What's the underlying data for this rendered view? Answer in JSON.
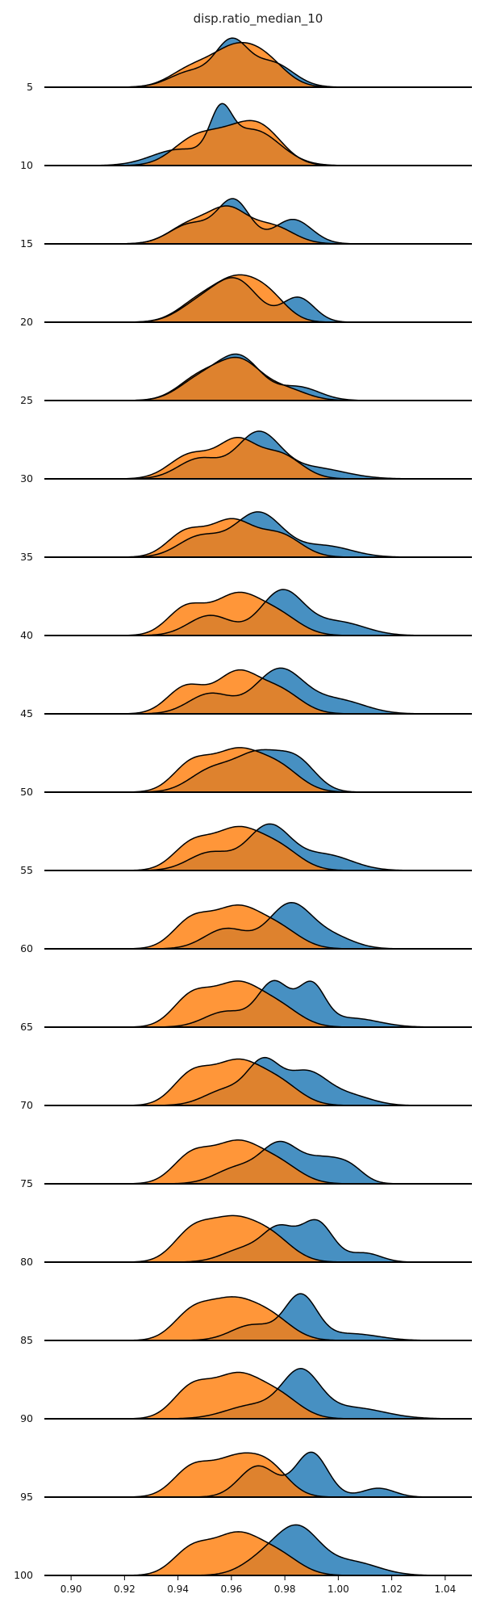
{
  "chart_data": {
    "type": "area",
    "title": "disp.ratio_median_10",
    "xlabel": "",
    "ylabel": "",
    "xlim": [
      0.89,
      1.05
    ],
    "x_ticks": [
      "0.90",
      "0.92",
      "0.94",
      "0.96",
      "0.98",
      "1.00",
      "1.02",
      "1.04"
    ],
    "x_tick_values": [
      0.9,
      0.92,
      0.94,
      0.96,
      0.98,
      1.0,
      1.02,
      1.04
    ],
    "grid": false,
    "series_colors": {
      "blue": "#1f77b4",
      "orange": "#ff7f0e"
    },
    "ridges": [
      {
        "label": "5",
        "blue": {
          "peaks": [
            [
              0.945,
              0.008,
              0.35
            ],
            [
              0.96,
              0.006,
              0.95
            ],
            [
              0.975,
              0.008,
              0.55
            ]
          ]
        },
        "orange": {
          "peaks": [
            [
              0.945,
              0.008,
              0.4
            ],
            [
              0.96,
              0.008,
              0.7
            ],
            [
              0.972,
              0.008,
              0.6
            ]
          ]
        }
      },
      {
        "label": "10",
        "blue": {
          "peaks": [
            [
              0.94,
              0.01,
              0.35
            ],
            [
              0.956,
              0.004,
              0.9
            ],
            [
              0.968,
              0.01,
              0.8
            ]
          ]
        },
        "orange": {
          "peaks": [
            [
              0.945,
              0.008,
              0.45
            ],
            [
              0.96,
              0.01,
              0.65
            ],
            [
              0.972,
              0.008,
              0.6
            ]
          ]
        }
      },
      {
        "label": "15",
        "blue": {
          "peaks": [
            [
              0.945,
              0.008,
              0.45
            ],
            [
              0.961,
              0.006,
              0.95
            ],
            [
              0.983,
              0.007,
              0.55
            ]
          ]
        },
        "orange": {
          "peaks": [
            [
              0.945,
              0.008,
              0.45
            ],
            [
              0.959,
              0.007,
              0.7
            ],
            [
              0.975,
              0.008,
              0.4
            ]
          ]
        }
      },
      {
        "label": "20",
        "blue": {
          "peaks": [
            [
              0.948,
              0.008,
              0.4
            ],
            [
              0.962,
              0.008,
              0.9
            ],
            [
              0.985,
              0.006,
              0.55
            ]
          ]
        },
        "orange": {
          "peaks": [
            [
              0.948,
              0.008,
              0.45
            ],
            [
              0.962,
              0.008,
              0.85
            ],
            [
              0.974,
              0.007,
              0.5
            ]
          ]
        }
      },
      {
        "label": "25",
        "blue": {
          "peaks": [
            [
              0.948,
              0.008,
              0.45
            ],
            [
              0.963,
              0.008,
              0.95
            ],
            [
              0.985,
              0.008,
              0.3
            ]
          ]
        },
        "orange": {
          "peaks": [
            [
              0.948,
              0.008,
              0.5
            ],
            [
              0.963,
              0.008,
              0.85
            ],
            [
              0.98,
              0.008,
              0.25
            ]
          ]
        }
      },
      {
        "label": "30",
        "blue": {
          "peaks": [
            [
              0.948,
              0.008,
              0.45
            ],
            [
              0.97,
              0.008,
              1.0
            ],
            [
              0.99,
              0.012,
              0.25
            ]
          ]
        },
        "orange": {
          "peaks": [
            [
              0.945,
              0.008,
              0.55
            ],
            [
              0.962,
              0.007,
              0.8
            ],
            [
              0.978,
              0.008,
              0.55
            ]
          ]
        }
      },
      {
        "label": "35",
        "blue": {
          "peaks": [
            [
              0.948,
              0.008,
              0.45
            ],
            [
              0.97,
              0.009,
              1.0
            ],
            [
              0.995,
              0.01,
              0.25
            ]
          ]
        },
        "orange": {
          "peaks": [
            [
              0.943,
              0.007,
              0.55
            ],
            [
              0.96,
              0.008,
              0.8
            ],
            [
              0.978,
              0.008,
              0.5
            ]
          ]
        }
      },
      {
        "label": "40",
        "blue": {
          "peaks": [
            [
              0.952,
              0.008,
              0.45
            ],
            [
              0.979,
              0.008,
              1.0
            ],
            [
              1.0,
              0.01,
              0.3
            ]
          ]
        },
        "orange": {
          "peaks": [
            [
              0.943,
              0.007,
              0.6
            ],
            [
              0.962,
              0.009,
              0.9
            ],
            [
              0.978,
              0.008,
              0.4
            ]
          ]
        }
      },
      {
        "label": "45",
        "blue": {
          "peaks": [
            [
              0.952,
              0.008,
              0.45
            ],
            [
              0.978,
              0.009,
              1.0
            ],
            [
              1.0,
              0.01,
              0.3
            ]
          ]
        },
        "orange": {
          "peaks": [
            [
              0.943,
              0.007,
              0.6
            ],
            [
              0.962,
              0.008,
              0.9
            ],
            [
              0.978,
              0.008,
              0.5
            ]
          ]
        }
      },
      {
        "label": "50",
        "blue": {
          "peaks": [
            [
              0.952,
              0.008,
              0.45
            ],
            [
              0.97,
              0.009,
              0.85
            ],
            [
              0.985,
              0.007,
              0.6
            ]
          ]
        },
        "orange": {
          "peaks": [
            [
              0.945,
              0.007,
              0.6
            ],
            [
              0.962,
              0.009,
              0.9
            ],
            [
              0.978,
              0.008,
              0.5
            ]
          ]
        }
      },
      {
        "label": "55",
        "blue": {
          "peaks": [
            [
              0.952,
              0.008,
              0.4
            ],
            [
              0.974,
              0.008,
              1.0
            ],
            [
              0.995,
              0.01,
              0.35
            ]
          ]
        },
        "orange": {
          "peaks": [
            [
              0.945,
              0.007,
              0.55
            ],
            [
              0.962,
              0.009,
              0.9
            ],
            [
              0.978,
              0.008,
              0.45
            ]
          ]
        }
      },
      {
        "label": "60",
        "blue": {
          "peaks": [
            [
              0.958,
              0.008,
              0.45
            ],
            [
              0.982,
              0.008,
              1.0
            ],
            [
              0.998,
              0.008,
              0.25
            ]
          ]
        },
        "orange": {
          "peaks": [
            [
              0.945,
              0.007,
              0.6
            ],
            [
              0.962,
              0.009,
              0.9
            ],
            [
              0.978,
              0.008,
              0.4
            ]
          ]
        }
      },
      {
        "label": "65",
        "blue": {
          "peaks": [
            [
              0.958,
              0.008,
              0.35
            ],
            [
              0.976,
              0.006,
              1.0
            ],
            [
              0.99,
              0.005,
              0.9
            ],
            [
              1.005,
              0.01,
              0.2
            ]
          ]
        },
        "orange": {
          "peaks": [
            [
              0.945,
              0.007,
              0.65
            ],
            [
              0.962,
              0.009,
              0.95
            ],
            [
              0.978,
              0.008,
              0.4
            ]
          ]
        }
      },
      {
        "label": "70",
        "blue": {
          "peaks": [
            [
              0.958,
              0.008,
              0.35
            ],
            [
              0.972,
              0.006,
              0.9
            ],
            [
              0.988,
              0.008,
              0.75
            ],
            [
              1.005,
              0.008,
              0.2
            ]
          ]
        },
        "orange": {
          "peaks": [
            [
              0.945,
              0.007,
              0.65
            ],
            [
              0.962,
              0.009,
              0.95
            ],
            [
              0.978,
              0.008,
              0.45
            ]
          ]
        }
      },
      {
        "label": "75",
        "blue": {
          "peaks": [
            [
              0.962,
              0.008,
              0.35
            ],
            [
              0.978,
              0.007,
              0.85
            ],
            [
              0.995,
              0.008,
              0.55
            ],
            [
              1.005,
              0.005,
              0.2
            ]
          ]
        },
        "orange": {
          "peaks": [
            [
              0.945,
              0.007,
              0.6
            ],
            [
              0.962,
              0.009,
              0.9
            ],
            [
              0.978,
              0.008,
              0.4
            ]
          ]
        }
      },
      {
        "label": "80",
        "blue": {
          "peaks": [
            [
              0.965,
              0.008,
              0.3
            ],
            [
              0.978,
              0.006,
              0.7
            ],
            [
              0.992,
              0.006,
              0.9
            ],
            [
              1.01,
              0.006,
              0.2
            ]
          ]
        },
        "orange": {
          "peaks": [
            [
              0.945,
              0.007,
              0.6
            ],
            [
              0.96,
              0.009,
              0.9
            ],
            [
              0.975,
              0.008,
              0.5
            ]
          ]
        }
      },
      {
        "label": "85",
        "blue": {
          "peaks": [
            [
              0.968,
              0.008,
              0.35
            ],
            [
              0.986,
              0.006,
              1.0
            ],
            [
              1.005,
              0.01,
              0.15
            ]
          ]
        },
        "orange": {
          "peaks": [
            [
              0.945,
              0.007,
              0.55
            ],
            [
              0.96,
              0.009,
              0.85
            ],
            [
              0.975,
              0.008,
              0.45
            ]
          ]
        }
      },
      {
        "label": "90",
        "blue": {
          "peaks": [
            [
              0.968,
              0.01,
              0.3
            ],
            [
              0.986,
              0.007,
              1.0
            ],
            [
              1.005,
              0.012,
              0.25
            ]
          ]
        },
        "orange": {
          "peaks": [
            [
              0.945,
              0.007,
              0.65
            ],
            [
              0.962,
              0.009,
              0.95
            ],
            [
              0.978,
              0.008,
              0.45
            ]
          ]
        }
      },
      {
        "label": "95",
        "blue": {
          "peaks": [
            [
              0.97,
              0.007,
              0.7
            ],
            [
              0.99,
              0.006,
              1.0
            ],
            [
              1.015,
              0.006,
              0.2
            ]
          ]
        },
        "orange": {
          "peaks": [
            [
              0.945,
              0.007,
              0.6
            ],
            [
              0.962,
              0.009,
              0.85
            ],
            [
              0.975,
              0.007,
              0.5
            ]
          ]
        }
      },
      {
        "label": "100",
        "blue": {
          "peaks": [
            [
              0.972,
              0.008,
              0.35
            ],
            [
              0.985,
              0.008,
              1.0
            ],
            [
              1.005,
              0.01,
              0.3
            ]
          ]
        },
        "orange": {
          "peaks": [
            [
              0.945,
              0.007,
              0.55
            ],
            [
              0.962,
              0.009,
              0.9
            ],
            [
              0.978,
              0.008,
              0.4
            ]
          ]
        }
      }
    ]
  }
}
